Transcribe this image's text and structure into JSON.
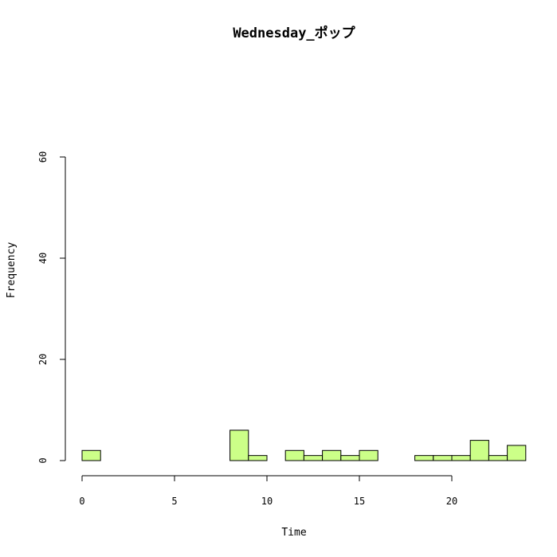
{
  "chart_data": {
    "type": "bar",
    "subtype": "histogram",
    "title": "Wednesday_ポップ",
    "xlabel": "Time",
    "ylabel": "Frequency",
    "bin_width": 1,
    "bins": [
      {
        "x0": 0,
        "x1": 1,
        "count": 2
      },
      {
        "x0": 1,
        "x1": 2,
        "count": 0
      },
      {
        "x0": 2,
        "x1": 3,
        "count": 0
      },
      {
        "x0": 3,
        "x1": 4,
        "count": 0
      },
      {
        "x0": 4,
        "x1": 5,
        "count": 0
      },
      {
        "x0": 5,
        "x1": 6,
        "count": 0
      },
      {
        "x0": 6,
        "x1": 7,
        "count": 0
      },
      {
        "x0": 7,
        "x1": 8,
        "count": 0
      },
      {
        "x0": 8,
        "x1": 9,
        "count": 6
      },
      {
        "x0": 9,
        "x1": 10,
        "count": 1
      },
      {
        "x0": 10,
        "x1": 11,
        "count": 0
      },
      {
        "x0": 11,
        "x1": 12,
        "count": 2
      },
      {
        "x0": 12,
        "x1": 13,
        "count": 1
      },
      {
        "x0": 13,
        "x1": 14,
        "count": 2
      },
      {
        "x0": 14,
        "x1": 15,
        "count": 1
      },
      {
        "x0": 15,
        "x1": 16,
        "count": 2
      },
      {
        "x0": 16,
        "x1": 17,
        "count": 0
      },
      {
        "x0": 17,
        "x1": 18,
        "count": 0
      },
      {
        "x0": 18,
        "x1": 19,
        "count": 1
      },
      {
        "x0": 19,
        "x1": 20,
        "count": 1
      },
      {
        "x0": 20,
        "x1": 21,
        "count": 1
      },
      {
        "x0": 21,
        "x1": 22,
        "count": 4
      },
      {
        "x0": 22,
        "x1": 23,
        "count": 1
      },
      {
        "x0": 23,
        "x1": 24,
        "count": 3
      }
    ],
    "xlim": [
      0,
      24
    ],
    "ylim": [
      0,
      60
    ],
    "x_ticks": [
      0,
      5,
      10,
      15,
      20
    ],
    "y_ticks": [
      0,
      20,
      40,
      60
    ],
    "bar_color": "#ccff88",
    "bar_edge_color": "#000000",
    "grid": false,
    "legend": "none"
  }
}
